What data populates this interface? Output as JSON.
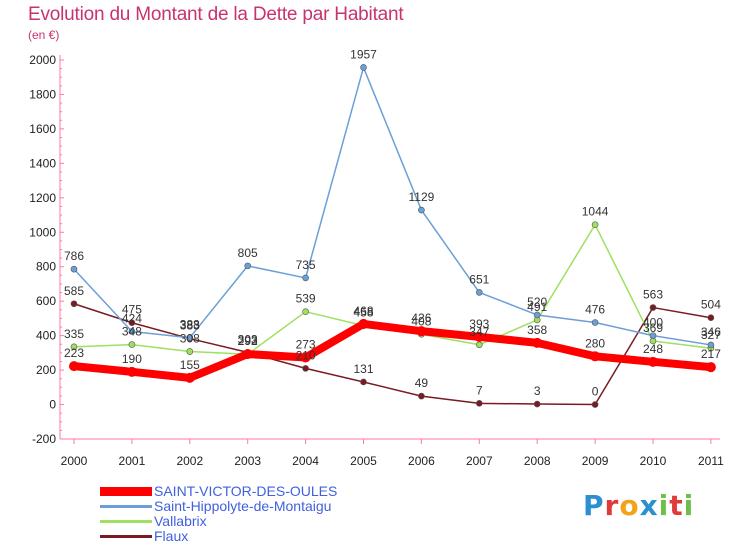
{
  "chart_data": {
    "type": "line",
    "title": "Evolution du Montant de la Dette par Habitant",
    "subtitle": "(en €)",
    "xlabel": "",
    "ylabel": "",
    "categories": [
      "2000",
      "2001",
      "2002",
      "2003",
      "2004",
      "2005",
      "2006",
      "2007",
      "2008",
      "2009",
      "2010",
      "2011"
    ],
    "ylim": [
      -200,
      2000
    ],
    "yticks": [
      -200,
      0,
      200,
      400,
      600,
      800,
      1000,
      1200,
      1400,
      1600,
      1800,
      2000
    ],
    "grid": false,
    "legend_position": "bottom-left",
    "series": [
      {
        "name": "Flaux",
        "color": "#7a1a22",
        "width": 1.5,
        "values": [
          585,
          475,
          383,
          303,
          210,
          131,
          49,
          7,
          3,
          0,
          563,
          504
        ]
      },
      {
        "name": "Vallabrix",
        "color": "#9ee060",
        "width": 1.5,
        "values": [
          335,
          348,
          308,
          292,
          539,
          458,
          408,
          347,
          491,
          1044,
          369,
          327
        ]
      },
      {
        "name": "Saint-Hippolyte-de-Montaigu",
        "color": "#6a9fd8",
        "width": 1.5,
        "values": [
          786,
          424,
          388,
          805,
          735,
          1957,
          1129,
          651,
          520,
          476,
          400,
          346
        ]
      },
      {
        "name": "SAINT-VICTOR-DES-OULES",
        "color": "#ff0000",
        "width": 8,
        "values": [
          223,
          190,
          155,
          293,
          273,
          468,
          426,
          393,
          358,
          280,
          248,
          217
        ]
      }
    ]
  },
  "legend": [
    {
      "label": "SAINT-VICTOR-DES-OULES",
      "color": "#ff0000"
    },
    {
      "label": "Saint-Hippolyte-de-Montaigu",
      "color": "#6a9fd8"
    },
    {
      "label": "Vallabrix",
      "color": "#9ee060"
    },
    {
      "label": "Flaux",
      "color": "#7a1a22"
    }
  ],
  "logo": {
    "letters": [
      "P",
      "r",
      "o",
      "x",
      "i",
      "t",
      "i"
    ],
    "colors": [
      "#2b8fd0",
      "#e03a3a",
      "#f5a21b",
      "#2b8fd0",
      "#6cc04a",
      "#e03a3a",
      "#6cc04a"
    ]
  }
}
